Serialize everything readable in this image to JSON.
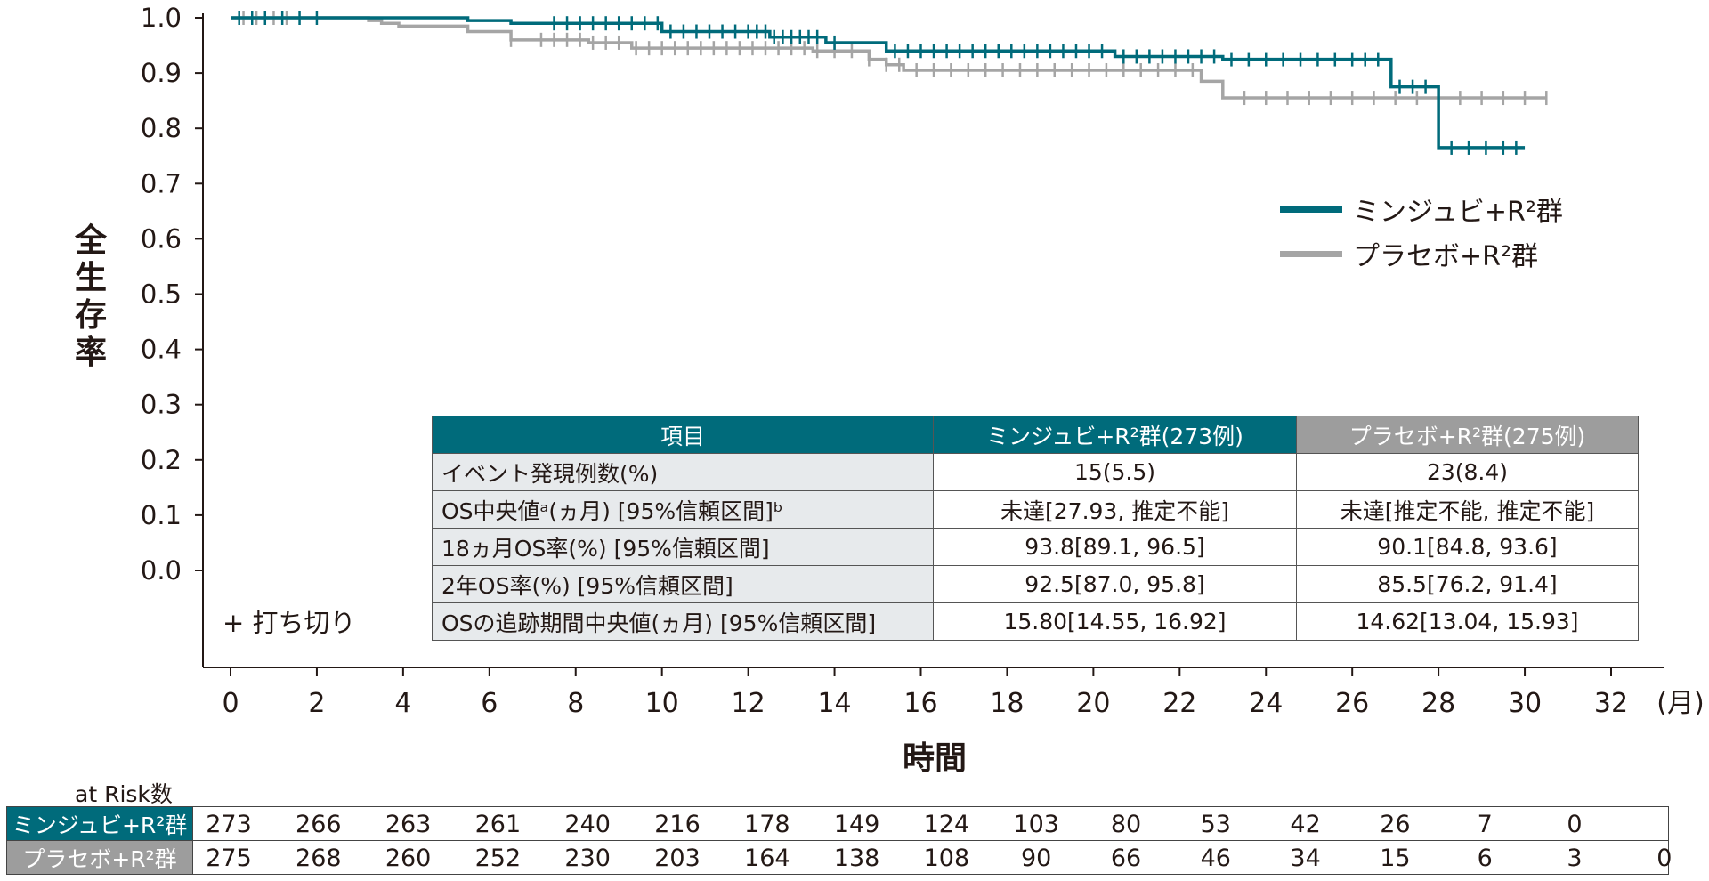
{
  "chart_data": {
    "type": "line",
    "subtype": "kaplan-meier",
    "ylabel": "全生存率",
    "xlabel": "時間",
    "x_unit": "(月)",
    "xlim": [
      0,
      32
    ],
    "ylim": [
      0.0,
      1.0
    ],
    "x_ticks": [
      "0",
      "2",
      "4",
      "6",
      "8",
      "10",
      "12",
      "14",
      "16",
      "18",
      "20",
      "22",
      "24",
      "26",
      "28",
      "30",
      "32"
    ],
    "y_ticks": [
      "0.0",
      "0.1",
      "0.2",
      "0.3",
      "0.4",
      "0.5",
      "0.6",
      "0.7",
      "0.8",
      "0.9",
      "1.0"
    ],
    "censor_note": "+ 打ち切り",
    "series": [
      {
        "name": "ミンジュビ+R²群",
        "color": "#006b7b",
        "steps": [
          [
            0,
            1.0
          ],
          [
            5.5,
            0.995
          ],
          [
            6.5,
            0.99
          ],
          [
            10,
            0.975
          ],
          [
            12.5,
            0.965
          ],
          [
            13.8,
            0.955
          ],
          [
            15.2,
            0.94
          ],
          [
            20.5,
            0.93
          ],
          [
            23,
            0.925
          ],
          [
            26.9,
            0.875
          ],
          [
            28,
            0.765
          ],
          [
            30,
            0.765
          ]
        ],
        "censor_x": [
          0.2,
          0.5,
          0.8,
          1.2,
          1.6,
          2,
          7.5,
          7.8,
          8.1,
          8.4,
          8.7,
          9,
          9.3,
          9.6,
          9.9,
          10.2,
          10.5,
          10.8,
          11.1,
          11.4,
          11.7,
          12,
          12.2,
          12.4,
          12.6,
          12.8,
          13,
          13.2,
          13.4,
          13.6,
          14,
          15.4,
          15.7,
          16,
          16.3,
          16.6,
          16.9,
          17.2,
          17.5,
          17.8,
          18.1,
          18.4,
          18.7,
          19,
          19.3,
          19.6,
          19.9,
          20.2,
          20.7,
          21,
          21.3,
          21.6,
          21.9,
          22.2,
          22.5,
          22.8,
          23.2,
          23.6,
          24,
          24.4,
          24.8,
          25.2,
          25.6,
          26,
          26.3,
          26.6,
          27.1,
          27.4,
          27.7,
          28.3,
          28.7,
          29.1,
          29.5,
          29.8
        ]
      },
      {
        "name": "プラセボ+R²群",
        "color": "#a5a5a5",
        "steps": [
          [
            0,
            1.0
          ],
          [
            3.2,
            0.995
          ],
          [
            3.5,
            0.99
          ],
          [
            3.9,
            0.985
          ],
          [
            5.5,
            0.975
          ],
          [
            6.5,
            0.96
          ],
          [
            8.3,
            0.955
          ],
          [
            9.3,
            0.945
          ],
          [
            13.5,
            0.94
          ],
          [
            14.8,
            0.925
          ],
          [
            15.2,
            0.915
          ],
          [
            15.6,
            0.905
          ],
          [
            22.5,
            0.885
          ],
          [
            23,
            0.855
          ],
          [
            30.5,
            0.855
          ]
        ],
        "censor_x": [
          0.3,
          0.6,
          1,
          1.3,
          6.5,
          7.2,
          7.5,
          7.8,
          8.1,
          8.4,
          8.7,
          9,
          9.4,
          9.7,
          10,
          10.3,
          10.6,
          10.9,
          11.2,
          11.5,
          11.8,
          12.1,
          12.4,
          12.7,
          13,
          13.3,
          13.6,
          14,
          14.4,
          14.8,
          15.2,
          15.5,
          15.9,
          16.3,
          16.7,
          17.1,
          17.5,
          17.9,
          18.3,
          18.7,
          19.1,
          19.5,
          19.9,
          20.3,
          20.7,
          21.1,
          21.5,
          21.9,
          22.3,
          23.5,
          24,
          24.5,
          25,
          25.5,
          26,
          26.5,
          27,
          27.5,
          28,
          28.5,
          29,
          29.5,
          30,
          30.5
        ]
      }
    ]
  },
  "summary_table": {
    "headers": [
      "項目",
      "ミンジュビ+R²群(273例)",
      "プラセボ+R²群(275例)"
    ],
    "rows": [
      {
        "label": "イベント発現例数(%)",
        "a": "15(5.5)",
        "b": "23(8.4)"
      },
      {
        "label": "OS中央値ᵃ(ヵ月) [95%信頼区間]ᵇ",
        "a": "未達[27.93, 推定不能]",
        "b": "未達[推定不能, 推定不能]"
      },
      {
        "label": "18ヵ月OS率(%) [95%信頼区間]",
        "a": "93.8[89.1, 96.5]",
        "b": "90.1[84.8, 93.6]"
      },
      {
        "label": "2年OS率(%) [95%信頼区間]",
        "a": "92.5[87.0, 95.8]",
        "b": "85.5[76.2, 91.4]"
      },
      {
        "label": "OSの追跡期間中央値(ヵ月) [95%信頼区間]",
        "a": "15.80[14.55, 16.92]",
        "b": "14.62[13.04, 15.93]"
      }
    ]
  },
  "risk_table": {
    "title": "at Risk数",
    "rows": [
      {
        "group": "ミンジュビ+R²群",
        "values": [
          "273",
          "266",
          "263",
          "261",
          "240",
          "216",
          "178",
          "149",
          "124",
          "103",
          "80",
          "53",
          "42",
          "26",
          "7",
          "0"
        ]
      },
      {
        "group": "プラセボ+R²群",
        "values": [
          "275",
          "268",
          "260",
          "252",
          "230",
          "203",
          "164",
          "138",
          "108",
          "90",
          "66",
          "46",
          "34",
          "15",
          "6",
          "3",
          "0"
        ]
      }
    ]
  }
}
